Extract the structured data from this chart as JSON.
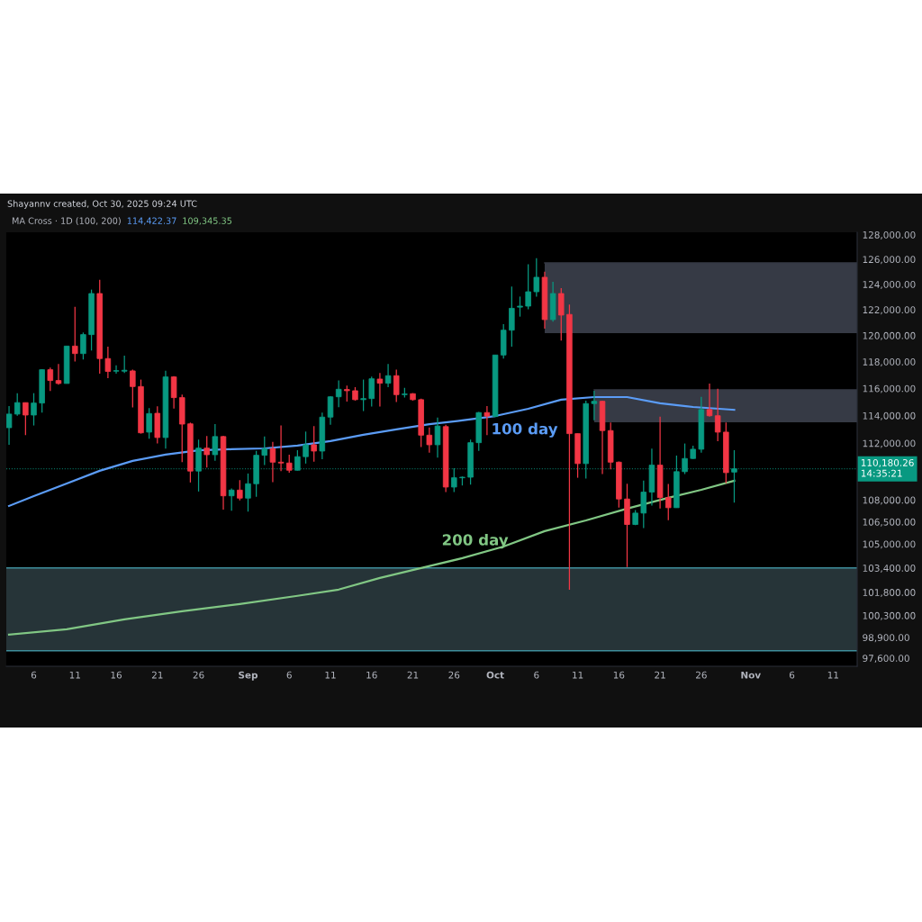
{
  "chart_data": {
    "type": "candlestick",
    "title": "Shayannv created, Oct 30, 2025 09:24 UTC",
    "subtitle": "MA Cross · 1D (100, 200)",
    "x": [
      "2025-08-03",
      "2025-08-04",
      "2025-08-05",
      "2025-08-06",
      "2025-08-07",
      "2025-08-08",
      "2025-08-09",
      "2025-08-10",
      "2025-08-11",
      "2025-08-12",
      "2025-08-13",
      "2025-08-14",
      "2025-08-15",
      "2025-08-16",
      "2025-08-17",
      "2025-08-18",
      "2025-08-19",
      "2025-08-20",
      "2025-08-21",
      "2025-08-22",
      "2025-08-23",
      "2025-08-24",
      "2025-08-25",
      "2025-08-26",
      "2025-08-27",
      "2025-08-28",
      "2025-08-29",
      "2025-08-30",
      "2025-08-31",
      "2025-09-01",
      "2025-09-02",
      "2025-09-03",
      "2025-09-04",
      "2025-09-05",
      "2025-09-06",
      "2025-09-07",
      "2025-09-08",
      "2025-09-09",
      "2025-09-10",
      "2025-09-11",
      "2025-09-12",
      "2025-09-13",
      "2025-09-14",
      "2025-09-15",
      "2025-09-16",
      "2025-09-17",
      "2025-09-18",
      "2025-09-19",
      "2025-09-20",
      "2025-09-21",
      "2025-09-22",
      "2025-09-23",
      "2025-09-24",
      "2025-09-25",
      "2025-09-26",
      "2025-09-27",
      "2025-09-28",
      "2025-09-29",
      "2025-09-30",
      "2025-10-01",
      "2025-10-02",
      "2025-10-03",
      "2025-10-04",
      "2025-10-05",
      "2025-10-06",
      "2025-10-07",
      "2025-10-08",
      "2025-10-09",
      "2025-10-10",
      "2025-10-11",
      "2025-10-12",
      "2025-10-13",
      "2025-10-14",
      "2025-10-15",
      "2025-10-16",
      "2025-10-17",
      "2025-10-18",
      "2025-10-19",
      "2025-10-20",
      "2025-10-21",
      "2025-10-22",
      "2025-10-23",
      "2025-10-24",
      "2025-10-25",
      "2025-10-26",
      "2025-10-27",
      "2025-10-28",
      "2025-10-29",
      "2025-10-30"
    ],
    "ohlc": [
      [
        113120,
        114700,
        111890,
        114110
      ],
      [
        114110,
        115650,
        113990,
        114950
      ],
      [
        114950,
        114950,
        112580,
        114040
      ],
      [
        114040,
        115650,
        113280,
        114920
      ],
      [
        114920,
        117440,
        114220,
        117400
      ],
      [
        117400,
        117560,
        115810,
        116590
      ],
      [
        116590,
        117830,
        116280,
        116370
      ],
      [
        116370,
        119190,
        116370,
        119190
      ],
      [
        119190,
        122230,
        118010,
        118620
      ],
      [
        118620,
        120230,
        118170,
        120070
      ],
      [
        120070,
        123580,
        118850,
        123270
      ],
      [
        123270,
        124360,
        117100,
        118240
      ],
      [
        118240,
        119140,
        116770,
        117270
      ],
      [
        117290,
        117730,
        117100,
        117330
      ],
      [
        117290,
        118460,
        117160,
        117360
      ],
      [
        117310,
        117400,
        114590,
        116140
      ],
      [
        116140,
        116660,
        112690,
        112750
      ],
      [
        112800,
        114550,
        112330,
        114150
      ],
      [
        114170,
        114680,
        111980,
        112410
      ],
      [
        112410,
        117330,
        111620,
        116860
      ],
      [
        116860,
        116920,
        114510,
        115320
      ],
      [
        115320,
        115540,
        110650,
        113380
      ],
      [
        113400,
        113490,
        109220,
        110020
      ],
      [
        110020,
        112260,
        108590,
        111650
      ],
      [
        111650,
        112520,
        110270,
        111180
      ],
      [
        111180,
        113380,
        110750,
        112480
      ],
      [
        112480,
        112540,
        107340,
        108290
      ],
      [
        108290,
        108800,
        107260,
        108690
      ],
      [
        108690,
        109390,
        107980,
        108130
      ],
      [
        108130,
        109850,
        107200,
        109130
      ],
      [
        109130,
        111460,
        108230,
        111140
      ],
      [
        111140,
        112480,
        110440,
        111620
      ],
      [
        111620,
        112090,
        109240,
        110650
      ],
      [
        110650,
        113280,
        110020,
        110590
      ],
      [
        110590,
        111180,
        109910,
        110080
      ],
      [
        110080,
        111500,
        110060,
        111040
      ],
      [
        111040,
        112840,
        110550,
        111890
      ],
      [
        111890,
        113240,
        110690,
        111440
      ],
      [
        111440,
        114220,
        110860,
        113890
      ],
      [
        113890,
        115430,
        113340,
        115380
      ],
      [
        115380,
        116590,
        114610,
        115940
      ],
      [
        115920,
        116210,
        115030,
        115830
      ],
      [
        115830,
        116100,
        115100,
        115170
      ],
      [
        115170,
        116660,
        114330,
        115250
      ],
      [
        115250,
        116880,
        114660,
        116720
      ],
      [
        116700,
        117160,
        114660,
        116390
      ],
      [
        116390,
        117830,
        116100,
        116950
      ],
      [
        116950,
        117400,
        114990,
        115540
      ],
      [
        115540,
        116050,
        115320,
        115590
      ],
      [
        115610,
        115650,
        115100,
        115170
      ],
      [
        115170,
        115250,
        111720,
        112580
      ],
      [
        112580,
        113130,
        111330,
        111890
      ],
      [
        111890,
        113850,
        110970,
        113240
      ],
      [
        113200,
        113340,
        108550,
        108900
      ],
      [
        108900,
        110230,
        108550,
        109550
      ],
      [
        109550,
        109640,
        109010,
        109590
      ],
      [
        109590,
        112260,
        109070,
        112040
      ],
      [
        112040,
        114260,
        111460,
        114220
      ],
      [
        114220,
        114700,
        112580,
        113960
      ],
      [
        113930,
        118510,
        113890,
        118510
      ],
      [
        118510,
        120880,
        118240,
        120410
      ],
      [
        120410,
        123820,
        119140,
        122110
      ],
      [
        122200,
        123030,
        121460,
        122280
      ],
      [
        122280,
        125610,
        122040,
        123410
      ],
      [
        123410,
        126100,
        123030,
        124560
      ],
      [
        124560,
        125010,
        120530,
        121230
      ],
      [
        121230,
        124190,
        121060,
        123270
      ],
      [
        123270,
        123700,
        119610,
        121580
      ],
      [
        121630,
        122400,
        101970,
        112690
      ],
      [
        112690,
        112690,
        109550,
        110550
      ],
      [
        110550,
        115100,
        109490,
        114880
      ],
      [
        114880,
        115830,
        113660,
        115050
      ],
      [
        115050,
        115100,
        109810,
        112910
      ],
      [
        112910,
        113490,
        110140,
        110650
      ],
      [
        110650,
        110700,
        107470,
        108070
      ],
      [
        108070,
        109130,
        103460,
        106320
      ],
      [
        106320,
        107300,
        106270,
        107100
      ],
      [
        107100,
        109350,
        106070,
        108550
      ],
      [
        108550,
        111620,
        107610,
        110440
      ],
      [
        110440,
        113930,
        107410,
        108170
      ],
      [
        108170,
        109110,
        106620,
        107470
      ],
      [
        107470,
        111120,
        107470,
        109980
      ],
      [
        109980,
        111980,
        109810,
        110910
      ],
      [
        110910,
        111830,
        110870,
        111570
      ],
      [
        111570,
        115380,
        111330,
        114440
      ],
      [
        114440,
        116370,
        113930,
        113990
      ],
      [
        113990,
        115980,
        112150,
        112800
      ],
      [
        112800,
        113490,
        109170,
        109910
      ],
      [
        109950,
        111500,
        107820,
        110180.26
      ]
    ],
    "colors": [
      "#089981",
      "#089981",
      "#f23645",
      "#089981",
      "#089981",
      "#f23645",
      "#f23645",
      "#089981",
      "#f23645",
      "#089981",
      "#089981",
      "#f23645",
      "#f23645",
      "#089981",
      "#089981",
      "#f23645",
      "#f23645",
      "#089981",
      "#f23645",
      "#089981",
      "#f23645",
      "#f23645",
      "#f23645",
      "#089981",
      "#f23645",
      "#089981",
      "#f23645",
      "#089981",
      "#f23645",
      "#089981",
      "#089981",
      "#089981",
      "#f23645",
      "#f23645",
      "#f23645",
      "#089981",
      "#089981",
      "#f23645",
      "#089981",
      "#089981",
      "#089981",
      "#f23645",
      "#f23645",
      "#089981",
      "#089981",
      "#f23645",
      "#089981",
      "#f23645",
      "#089981",
      "#f23645",
      "#f23645",
      "#f23645",
      "#089981",
      "#f23645",
      "#089981",
      "#089981",
      "#089981",
      "#089981",
      "#f23645",
      "#089981",
      "#089981",
      "#089981",
      "#089981",
      "#089981",
      "#089981",
      "#f23645",
      "#089981",
      "#f23645",
      "#f23645",
      "#f23645",
      "#089981",
      "#089981",
      "#f23645",
      "#f23645",
      "#f23645",
      "#f23645",
      "#089981",
      "#089981",
      "#089981",
      "#f23645",
      "#f23645",
      "#089981",
      "#089981",
      "#089981",
      "#089981",
      "#f23645",
      "#f23645",
      "#f23645",
      "#089981"
    ],
    "series": [
      {
        "type": "line",
        "color": "#5b9cf6",
        "x": [
          "2025-08-03",
          "2025-08-06",
          "2025-08-10",
          "2025-08-14",
          "2025-08-18",
          "2025-08-22",
          "2025-08-26",
          "2025-08-30",
          "2025-09-03",
          "2025-09-07",
          "2025-09-11",
          "2025-09-15",
          "2025-09-19",
          "2025-09-23",
          "2025-09-27",
          "2025-10-01",
          "2025-10-05",
          "2025-10-09",
          "2025-10-13",
          "2025-10-17",
          "2025-10-21",
          "2025-10-25",
          "2025-10-30"
        ],
        "values": [
          107590,
          108270,
          109150,
          110040,
          110740,
          111190,
          111500,
          111570,
          111630,
          111830,
          112150,
          112610,
          113000,
          113380,
          113650,
          113970,
          114500,
          115170,
          115360,
          115360,
          114900,
          114630,
          114422.37
        ]
      },
      {
        "type": "line",
        "color": "#363a45",
        "x": [
          "2025-10-07",
          "2025-11-13T22:00"
        ],
        "values": [
          125710,
          125710
        ],
        "lower": [
          120180,
          120180
        ],
        "upper": [
          125710,
          125710
        ]
      },
      {
        "type": "line",
        "color": "#363a45",
        "x": [
          "2025-10-13",
          "2025-11-13T22:00"
        ],
        "values": [
          115900,
          115900
        ],
        "lower": [
          113510,
          113510
        ],
        "upper": [
          115900,
          115900
        ]
      },
      {
        "type": "line",
        "color": "#81c784",
        "x": [
          "2025-08-03",
          "2025-08-10",
          "2025-08-17",
          "2025-08-24",
          "2025-08-31",
          "2025-09-07",
          "2025-09-12",
          "2025-09-17",
          "2025-09-22",
          "2025-09-27",
          "2025-10-02",
          "2025-10-07",
          "2025-10-12",
          "2025-10-17",
          "2025-10-22",
          "2025-10-26",
          "2025-10-30"
        ],
        "values": [
          99080,
          99420,
          100050,
          100570,
          101040,
          101570,
          101980,
          102740,
          103400,
          104050,
          104830,
          105870,
          106600,
          107410,
          108150,
          108710,
          109345.35
        ]
      }
    ],
    "annotations": [
      "114,422.37",
      "109,345.35",
      {
        "text": "100 day",
        "x": "2025-09-30T12:00",
        "y": 113930
      },
      {
        "text": "200 day",
        "x": "2025-09-24T12:00",
        "y": 103780
      }
    ],
    "bands": [
      {
        "axis": "y",
        "from": 98060,
        "to": 103400,
        "color": "#2a3a3e"
      }
    ],
    "ref_lines": [
      {
        "axis": "y",
        "value": 103400,
        "color": "#3e8e9b",
        "line_style": "solid"
      },
      {
        "axis": "y",
        "value": 98060,
        "color": "#3e8e9b",
        "line_style": "solid"
      },
      {
        "axis": "y",
        "value": 110180.26,
        "label": "110,180.26\n14:35:21",
        "color": "#089981",
        "line_style": "dotted"
      }
    ],
    "log": "y",
    "xlim": [
      "2025-08-02T16:00",
      "2025-11-13T22:00"
    ],
    "xticks": [
      {
        "value": "2025-08-06",
        "label": "6"
      },
      {
        "value": "2025-08-11",
        "label": "11"
      },
      {
        "value": "2025-08-16",
        "label": "16"
      },
      {
        "value": "2025-08-21",
        "label": "21"
      },
      {
        "value": "2025-08-26",
        "label": "26"
      },
      {
        "value": "2025-09-01",
        "label": "Sep"
      },
      {
        "value": "2025-09-06",
        "label": "6"
      },
      {
        "value": "2025-09-11",
        "label": "11"
      },
      {
        "value": "2025-09-16",
        "label": "16"
      },
      {
        "value": "2025-09-21",
        "label": "21"
      },
      {
        "value": "2025-09-26",
        "label": "26"
      },
      {
        "value": "2025-10-01",
        "label": "Oct"
      },
      {
        "value": "2025-10-06",
        "label": "6"
      },
      {
        "value": "2025-10-11",
        "label": "11"
      },
      {
        "value": "2025-10-16",
        "label": "16"
      },
      {
        "value": "2025-10-21",
        "label": "21"
      },
      {
        "value": "2025-10-26",
        "label": "26"
      },
      {
        "value": "2025-11-01",
        "label": "Nov"
      },
      {
        "value": "2025-11-06",
        "label": "6"
      },
      {
        "value": "2025-11-11",
        "label": "11"
      }
    ],
    "ylim": [
      97090,
      128200
    ],
    "yticks": [
      {
        "value": 97600,
        "label": "97,600.00"
      },
      {
        "value": 98900,
        "label": "98,900.00"
      },
      {
        "value": 100300,
        "label": "100,300.00"
      },
      {
        "value": 101800,
        "label": "101,800.00"
      },
      {
        "value": 103400,
        "label": "103,400.00"
      },
      {
        "value": 105000,
        "label": "105,000.00"
      },
      {
        "value": 106500,
        "label": "106,500.00"
      },
      {
        "value": 108000,
        "label": "108,000.00"
      },
      {
        "value": 112000,
        "label": "112,000.00"
      },
      {
        "value": 114000,
        "label": "114,000.00"
      },
      {
        "value": 116000,
        "label": "116,000.00"
      },
      {
        "value": 118000,
        "label": "118,000.00"
      },
      {
        "value": 120000,
        "label": "120,000.00"
      },
      {
        "value": 122000,
        "label": "122,000.00"
      },
      {
        "value": 124000,
        "label": "124,000.00"
      },
      {
        "value": 126000,
        "label": "126,000.00"
      },
      {
        "value": 128000,
        "label": "128,000.00"
      }
    ],
    "grid": false,
    "legend": false
  }
}
